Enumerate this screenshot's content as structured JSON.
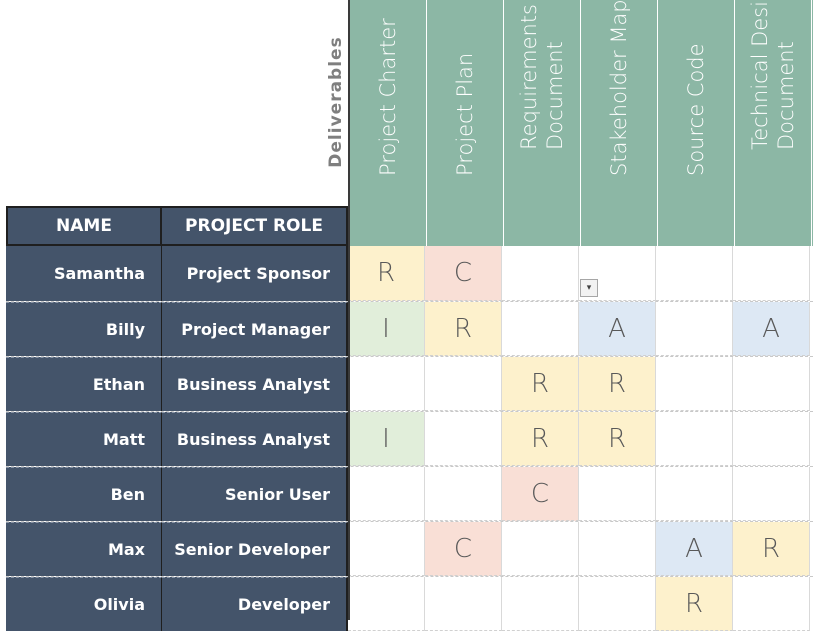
{
  "deliverables_label": "Deliverables",
  "headers": {
    "name": "NAME",
    "role": "PROJECT ROLE"
  },
  "columns": [
    "Project Charter",
    "Project Plan",
    "Requirements\nDocument",
    "Stakeholder Map",
    "Source Code",
    "Technical Design\nDocument"
  ],
  "rows": [
    {
      "name": "Samantha",
      "role": "Project Sponsor",
      "cells": [
        "R",
        "C",
        "",
        "",
        "",
        ""
      ]
    },
    {
      "name": "Billy",
      "role": "Project Manager",
      "cells": [
        "I",
        "R",
        "",
        "A",
        "",
        "A"
      ]
    },
    {
      "name": "Ethan",
      "role": "Business Analyst",
      "cells": [
        "",
        "",
        "R",
        "R",
        "",
        ""
      ]
    },
    {
      "name": "Matt",
      "role": "Business Analyst",
      "cells": [
        "I",
        "",
        "R",
        "R",
        "",
        ""
      ]
    },
    {
      "name": "Ben",
      "role": "Senior User",
      "cells": [
        "",
        "",
        "C",
        "",
        "",
        ""
      ]
    },
    {
      "name": "Max",
      "role": "Senior Developer",
      "cells": [
        "",
        "C",
        "",
        "",
        "A",
        "R"
      ]
    },
    {
      "name": "Olivia",
      "role": "Developer",
      "cells": [
        "",
        "",
        "",
        "",
        "R",
        ""
      ]
    }
  ],
  "dropdown_icon": "chevron-down-icon",
  "colors": {
    "header_green": "#8cb7a5",
    "row_navy": "#44546a",
    "R": "#fdf1cc",
    "A": "#dde8f4",
    "C": "#f9dfd6",
    "I": "#e1eeda"
  }
}
